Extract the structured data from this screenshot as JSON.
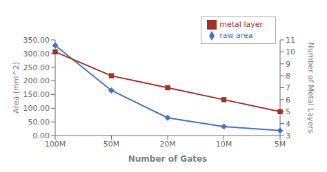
{
  "chart_data": {
    "type": "line",
    "x_label": "Number of Gates",
    "y_label": "Area (mm^2)",
    "y2_label": "Number of Metal Layers",
    "categories": [
      "100M",
      "50M",
      "20M",
      "10M",
      "5M"
    ],
    "series": [
      {
        "name": "raw area",
        "color": "#4472C4",
        "marker": "diamond",
        "values": [
          330,
          165,
          65,
          33,
          18
        ]
      },
      {
        "name": "metal layer",
        "color": "#9E3128",
        "marker": "square",
        "axis": "y2",
        "values": [
          10,
          8,
          7,
          6,
          5
        ]
      }
    ],
    "ylim": [
      0,
      350
    ],
    "yticks": [
      {
        "value": 0,
        "label": "0.00"
      },
      {
        "value": 50,
        "label": "50.00"
      },
      {
        "value": 100,
        "label": "100.00"
      },
      {
        "value": 150,
        "label": "150.00"
      },
      {
        "value": 200,
        "label": "200.00"
      },
      {
        "value": 250,
        "label": "250.00"
      },
      {
        "value": 300,
        "label": "300.00"
      },
      {
        "value": 350,
        "label": "350.00"
      }
    ],
    "y2lim": [
      3,
      11
    ],
    "y2ticks": [
      3,
      4,
      5,
      6,
      7,
      8,
      9,
      10,
      11
    ],
    "legend": "upper right",
    "grid": false
  }
}
